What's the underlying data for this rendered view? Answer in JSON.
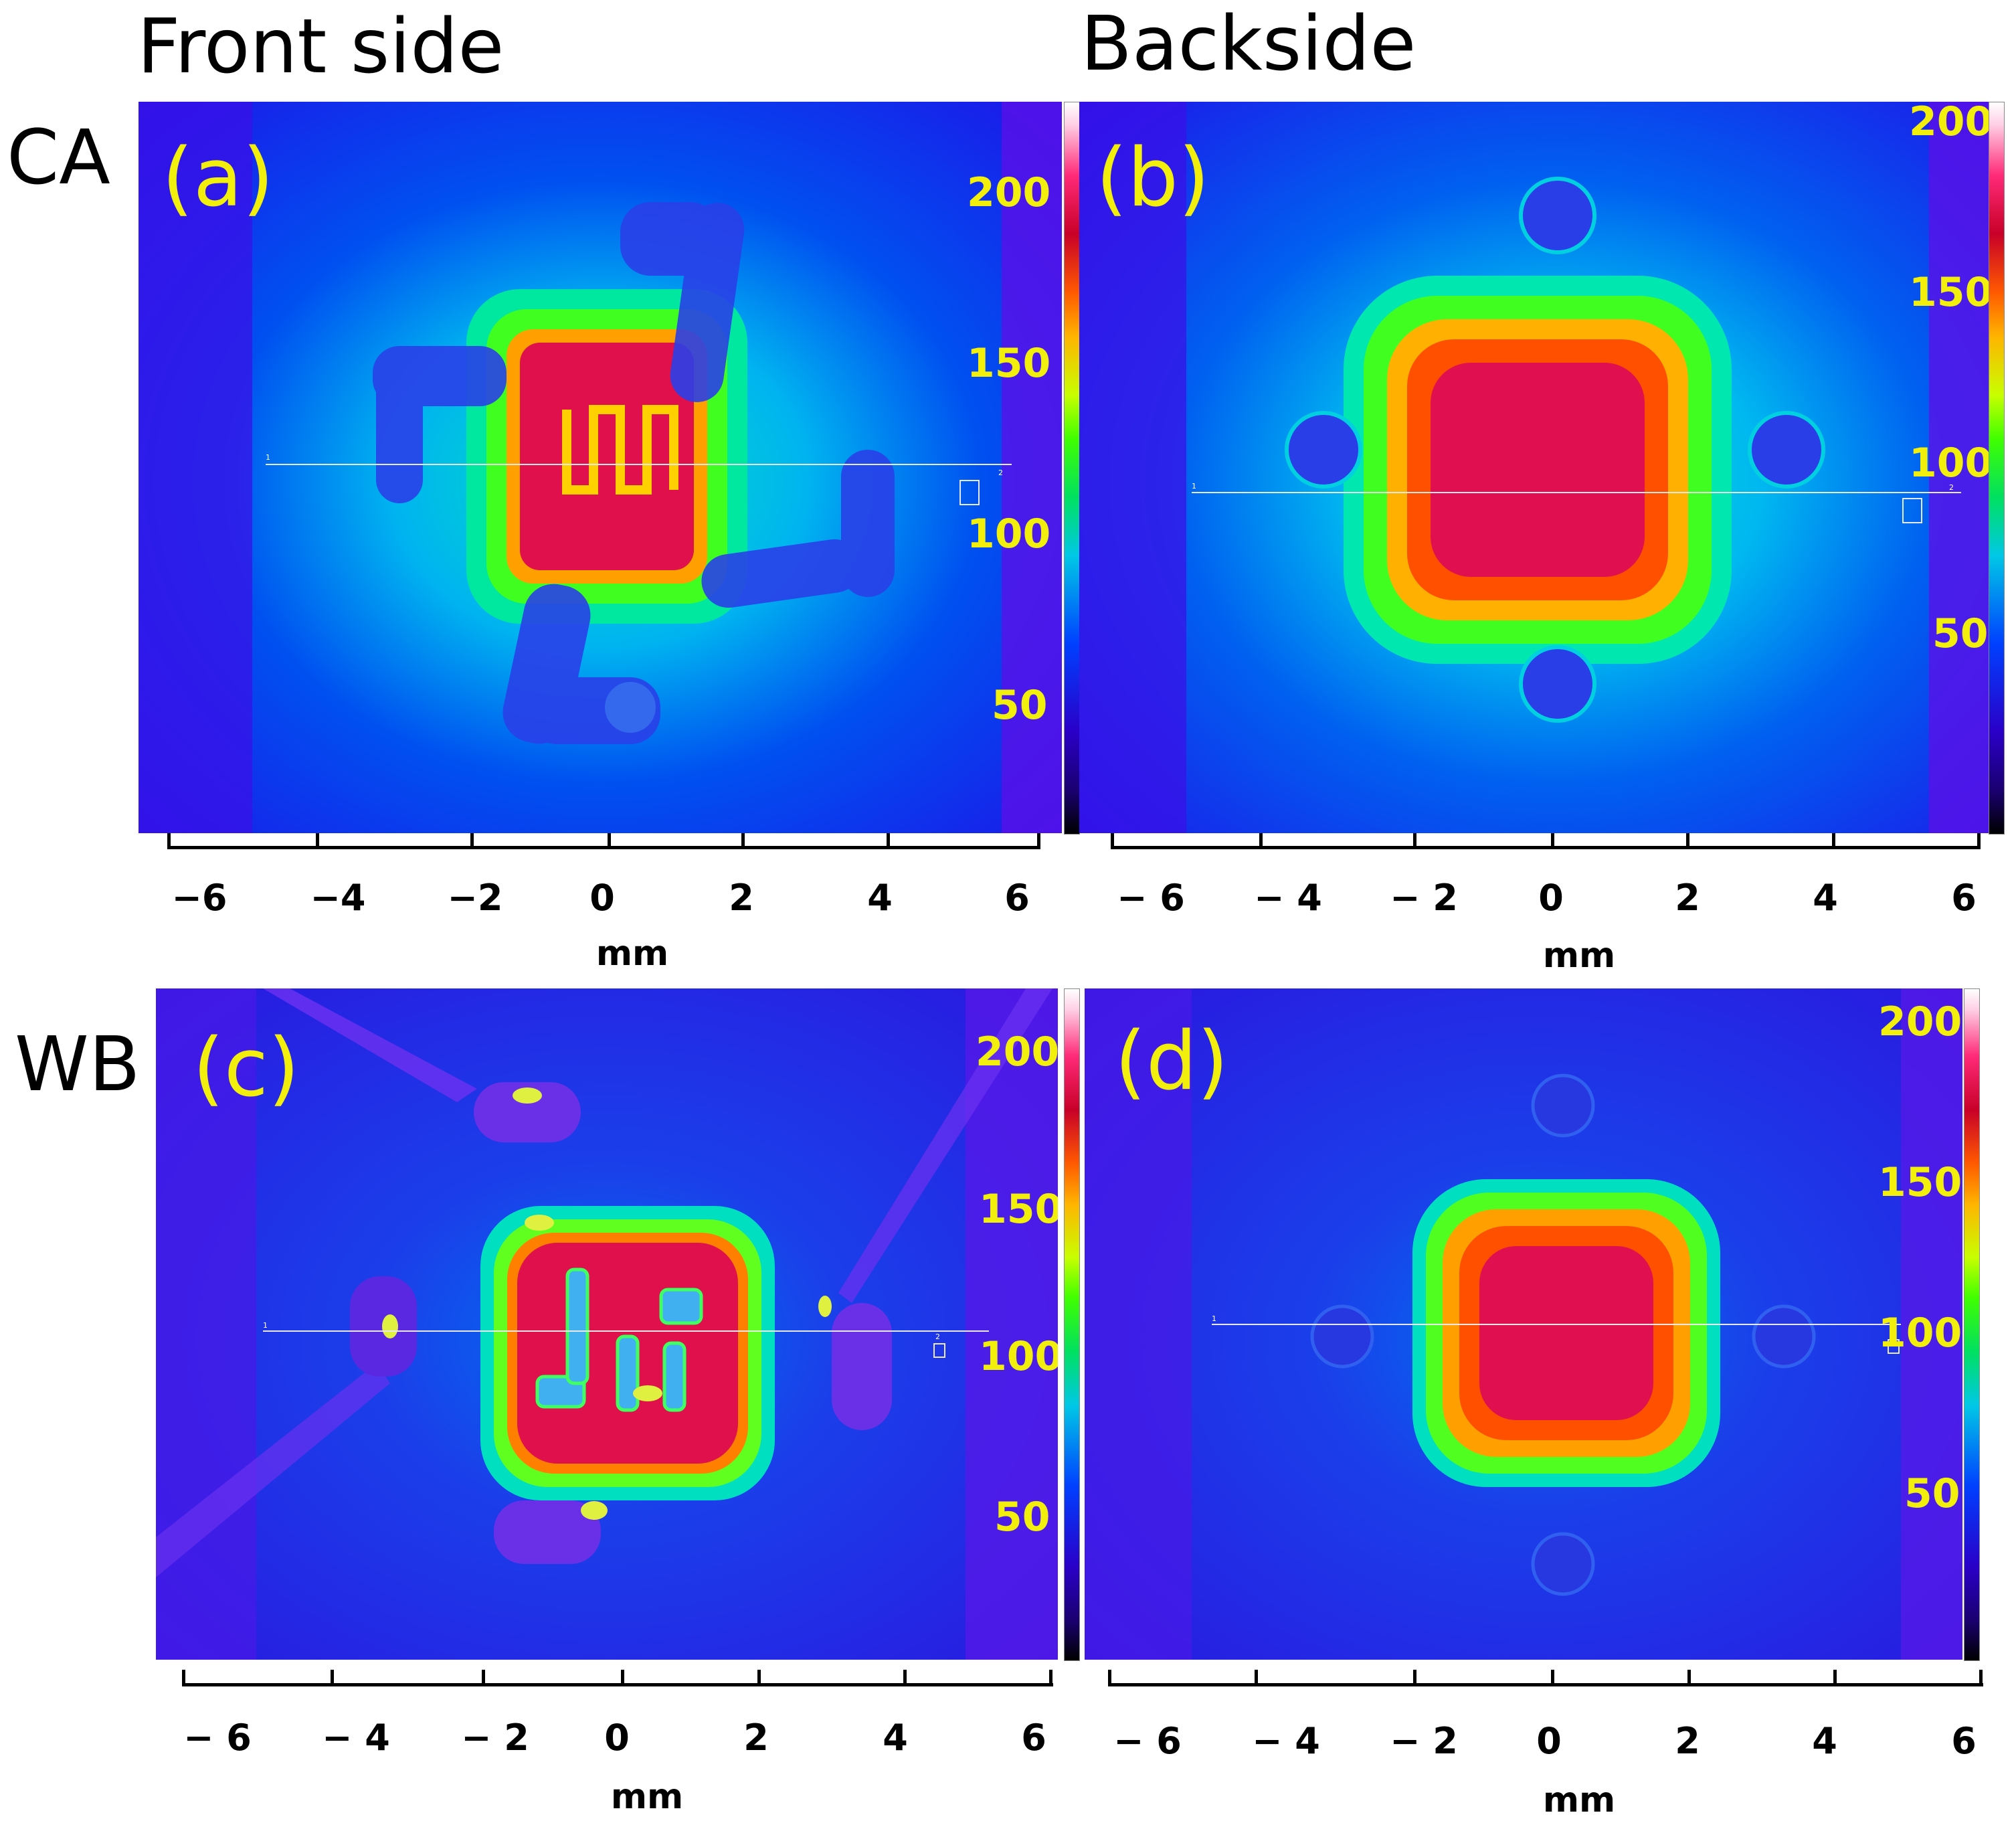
{
  "headings": {
    "front": "Front side",
    "back": "Backside"
  },
  "rows": {
    "ca": "CA",
    "wb": "WB"
  },
  "panels": [
    {
      "label": "(a)",
      "colorbar_ticks": [
        "200",
        "150",
        "100",
        "50"
      ]
    },
    {
      "label": "(b)",
      "colorbar_ticks": [
        "200",
        "150",
        "100",
        "50"
      ]
    },
    {
      "label": "(c)",
      "colorbar_ticks": [
        "200",
        "150",
        "100",
        "50"
      ]
    },
    {
      "label": "(d)",
      "colorbar_ticks": [
        "200",
        "150",
        "100",
        "50"
      ]
    }
  ],
  "axes": {
    "left_ticks": [
      "−6",
      "−4",
      "−2",
      "0",
      "2",
      "4",
      "6"
    ],
    "right_ticks": [
      "− 6",
      "− 4",
      "− 2",
      "0",
      "2",
      "4",
      "6"
    ],
    "bottom_left_ticks": [
      "− 6",
      "− 4",
      "− 2",
      "0",
      "2",
      "4",
      "6"
    ],
    "xlabel": "mm"
  },
  "scan_markers": {
    "start": "1",
    "end": "2"
  },
  "colors": {
    "label_yellow": "#f2ef0c",
    "hot": "#e0104c",
    "cool": "#1a2ee6"
  }
}
